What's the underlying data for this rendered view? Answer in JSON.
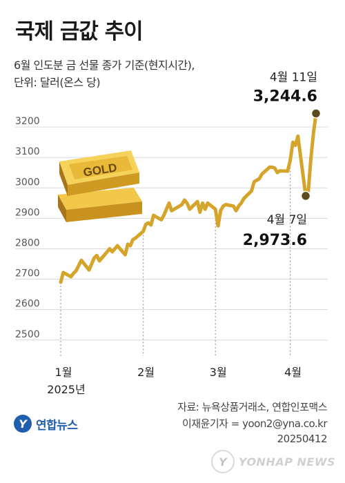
{
  "title": "국제 금값 추이",
  "subtitle_line1": "6월 인도분 금 선물 종가 기준(현지시간),",
  "subtitle_line2": "단위: 달러(온스 당)",
  "source": "자료: 뉴욕상품거래소, 연합인포맥스",
  "byline": "이재윤기자 = yoon2@yna.co.kr",
  "date_stamp": "20250412",
  "logo_text": "연합뉴스",
  "watermark_text": "YONHAP NEWS",
  "gold_bar_label": "GOLD",
  "colors": {
    "line": "#d4a52a",
    "grid": "#d9d9d9",
    "text": "#1a1a1a",
    "end_dot": "#5b4a1e"
  },
  "chart_data": {
    "type": "line",
    "title": "국제 금값 추이",
    "ylabel": "",
    "ylim": [
      2470,
      3300
    ],
    "yticks": [
      2500,
      2600,
      2700,
      2800,
      2900,
      3000,
      3100,
      3200
    ],
    "grid": true,
    "x_tick_labels": [
      "1월\n2025년",
      "2월",
      "3월",
      "4월"
    ],
    "x_ticks": [
      "2025-01-02",
      "2025-02-03",
      "2025-03-03",
      "2025-04-01"
    ],
    "annotations": [
      {
        "label": "4월 11일",
        "value_text": "3,244.6",
        "x": "2025-04-11",
        "y": 3244.6
      },
      {
        "label": "4월 7일",
        "value_text": "2,973.6",
        "x": "2025-04-07",
        "y": 2973.6
      }
    ],
    "series": [
      {
        "values": [
          [
            "2025-01-02",
            2690
          ],
          [
            "2025-01-03",
            2722
          ],
          [
            "2025-01-06",
            2708
          ],
          [
            "2025-01-07",
            2720
          ],
          [
            "2025-01-08",
            2728
          ],
          [
            "2025-01-10",
            2762
          ],
          [
            "2025-01-13",
            2730
          ],
          [
            "2025-01-14",
            2750
          ],
          [
            "2025-01-15",
            2770
          ],
          [
            "2025-01-16",
            2778
          ],
          [
            "2025-01-17",
            2760
          ],
          [
            "2025-01-21",
            2800
          ],
          [
            "2025-01-22",
            2790
          ],
          [
            "2025-01-23",
            2800
          ],
          [
            "2025-01-24",
            2810
          ],
          [
            "2025-01-27",
            2780
          ],
          [
            "2025-01-28",
            2815
          ],
          [
            "2025-01-29",
            2810
          ],
          [
            "2025-01-30",
            2830
          ],
          [
            "2025-01-31",
            2835
          ],
          [
            "2025-02-03",
            2857
          ],
          [
            "2025-02-04",
            2880
          ],
          [
            "2025-02-05",
            2885
          ],
          [
            "2025-02-06",
            2878
          ],
          [
            "2025-02-07",
            2910
          ],
          [
            "2025-02-10",
            2895
          ],
          [
            "2025-02-11",
            2910
          ],
          [
            "2025-02-12",
            2930
          ],
          [
            "2025-02-13",
            2950
          ],
          [
            "2025-02-14",
            2925
          ],
          [
            "2025-02-18",
            2945
          ],
          [
            "2025-02-19",
            2960
          ],
          [
            "2025-02-20",
            2950
          ],
          [
            "2025-02-21",
            2930
          ],
          [
            "2025-02-24",
            2955
          ],
          [
            "2025-02-25",
            2920
          ],
          [
            "2025-02-26",
            2950
          ],
          [
            "2025-02-27",
            2930
          ],
          [
            "2025-02-28",
            2950
          ],
          [
            "2025-03-03",
            2930
          ],
          [
            "2025-03-04",
            2875
          ],
          [
            "2025-03-05",
            2925
          ],
          [
            "2025-03-06",
            2940
          ],
          [
            "2025-03-07",
            2945
          ],
          [
            "2025-03-10",
            2940
          ],
          [
            "2025-03-11",
            2925
          ],
          [
            "2025-03-12",
            2940
          ],
          [
            "2025-03-13",
            2950
          ],
          [
            "2025-03-14",
            2965
          ],
          [
            "2025-03-17",
            2990
          ],
          [
            "2025-03-18",
            3020
          ],
          [
            "2025-03-19",
            3025
          ],
          [
            "2025-03-20",
            3030
          ],
          [
            "2025-03-21",
            3045
          ],
          [
            "2025-03-24",
            3068
          ],
          [
            "2025-03-25",
            3068
          ],
          [
            "2025-03-26",
            3065
          ],
          [
            "2025-03-27",
            3050
          ],
          [
            "2025-03-28",
            3056
          ],
          [
            "2025-03-31",
            3055
          ],
          [
            "2025-04-01",
            3090
          ],
          [
            "2025-04-02",
            3150
          ],
          [
            "2025-04-03",
            3140
          ],
          [
            "2025-04-04",
            3170
          ],
          [
            "2025-04-07",
            2973.6
          ],
          [
            "2025-04-08",
            2990
          ],
          [
            "2025-04-09",
            3095
          ],
          [
            "2025-04-10",
            3180
          ],
          [
            "2025-04-11",
            3244.6
          ]
        ]
      }
    ]
  }
}
